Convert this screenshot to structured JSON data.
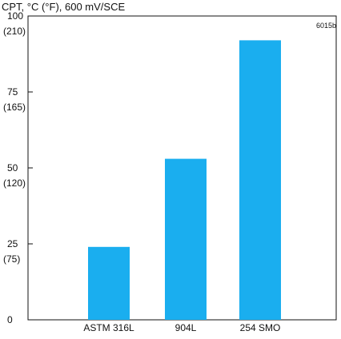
{
  "chart_data": {
    "type": "bar",
    "title": "CPT, °C (°F), 600 mV/SCE",
    "figure_code": "6015b",
    "categories": [
      "ASTM 316L",
      "904L",
      "254 SMO"
    ],
    "values": [
      24,
      53,
      92
    ],
    "ylim": [
      0,
      100
    ],
    "yticks": [
      {
        "value": 0,
        "label": "0",
        "label_f": ""
      },
      {
        "value": 25,
        "label": "25",
        "label_f": "(75)"
      },
      {
        "value": 50,
        "label": "50",
        "label_f": "(120)"
      },
      {
        "value": 75,
        "label": "75",
        "label_f": "(165)"
      },
      {
        "value": 100,
        "label": "100",
        "label_f": "(210)"
      }
    ],
    "xlabel": "",
    "ylabel": "",
    "grid": false,
    "colors": {
      "bar": "#1aaeef",
      "axis": "#111111"
    }
  }
}
